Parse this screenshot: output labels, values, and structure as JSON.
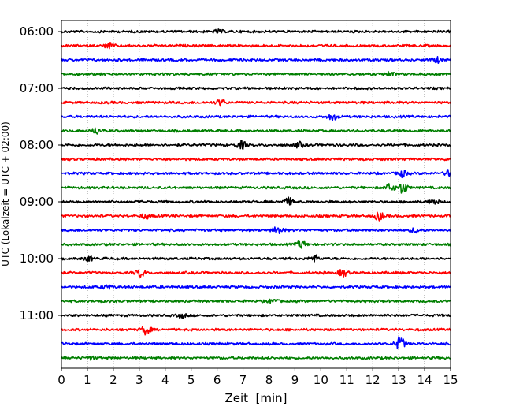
{
  "chart_data": {
    "type": "line",
    "title": "",
    "xlabel": "Zeit  [min]",
    "ylabel": "UTC (Lokalzeit = UTC + 02:00)",
    "xlim": [
      0,
      15
    ],
    "x_ticks": [
      "0",
      "1",
      "2",
      "3",
      "4",
      "5",
      "6",
      "7",
      "8",
      "9",
      "10",
      "11",
      "12",
      "13",
      "14",
      "15"
    ],
    "y_tick_labels": [
      "06:00",
      "07:00",
      "08:00",
      "09:00",
      "10:00",
      "11:00"
    ],
    "trace_interval_min": 15,
    "start_time": "06:00",
    "trace_count": 24,
    "color_cycle": [
      "#000000",
      "#ff0000",
      "#0000ff",
      "#007f00"
    ],
    "grid": "vertical-dotted",
    "bursts": [
      {
        "trace": 0,
        "x": 5.9,
        "amp": 0.6
      },
      {
        "trace": 1,
        "x": 1.7,
        "amp": 1.0
      },
      {
        "trace": 2,
        "x": 14.3,
        "amp": 1.0
      },
      {
        "trace": 3,
        "x": 12.5,
        "amp": 0.8
      },
      {
        "trace": 5,
        "x": 6.0,
        "amp": 1.2
      },
      {
        "trace": 6,
        "x": 10.3,
        "amp": 1.2
      },
      {
        "trace": 7,
        "x": 1.2,
        "amp": 1.2
      },
      {
        "trace": 8,
        "x": 6.8,
        "amp": 1.5
      },
      {
        "trace": 8,
        "x": 9.0,
        "amp": 1.0
      },
      {
        "trace": 10,
        "x": 13.0,
        "amp": 1.2
      },
      {
        "trace": 10,
        "x": 14.8,
        "amp": 1.3
      },
      {
        "trace": 11,
        "x": 13.0,
        "amp": 2.2
      },
      {
        "trace": 11,
        "x": 12.5,
        "amp": 1.3
      },
      {
        "trace": 12,
        "x": 8.6,
        "amp": 1.4
      },
      {
        "trace": 12,
        "x": 14.2,
        "amp": 1.0
      },
      {
        "trace": 13,
        "x": 12.1,
        "amp": 1.6
      },
      {
        "trace": 13,
        "x": 3.1,
        "amp": 1.0
      },
      {
        "trace": 14,
        "x": 8.2,
        "amp": 1.5
      },
      {
        "trace": 14,
        "x": 13.5,
        "amp": 0.8
      },
      {
        "trace": 15,
        "x": 9.1,
        "amp": 1.3
      },
      {
        "trace": 16,
        "x": 9.6,
        "amp": 1.2
      },
      {
        "trace": 16,
        "x": 0.9,
        "amp": 0.8
      },
      {
        "trace": 17,
        "x": 2.9,
        "amp": 1.6
      },
      {
        "trace": 17,
        "x": 10.7,
        "amp": 1.3
      },
      {
        "trace": 18,
        "x": 1.6,
        "amp": 0.7
      },
      {
        "trace": 19,
        "x": 8.0,
        "amp": 0.7
      },
      {
        "trace": 20,
        "x": 4.5,
        "amp": 0.8
      },
      {
        "trace": 21,
        "x": 3.1,
        "amp": 1.8
      },
      {
        "trace": 22,
        "x": 12.9,
        "amp": 2.6
      },
      {
        "trace": 23,
        "x": 1.0,
        "amp": 0.5
      }
    ]
  }
}
